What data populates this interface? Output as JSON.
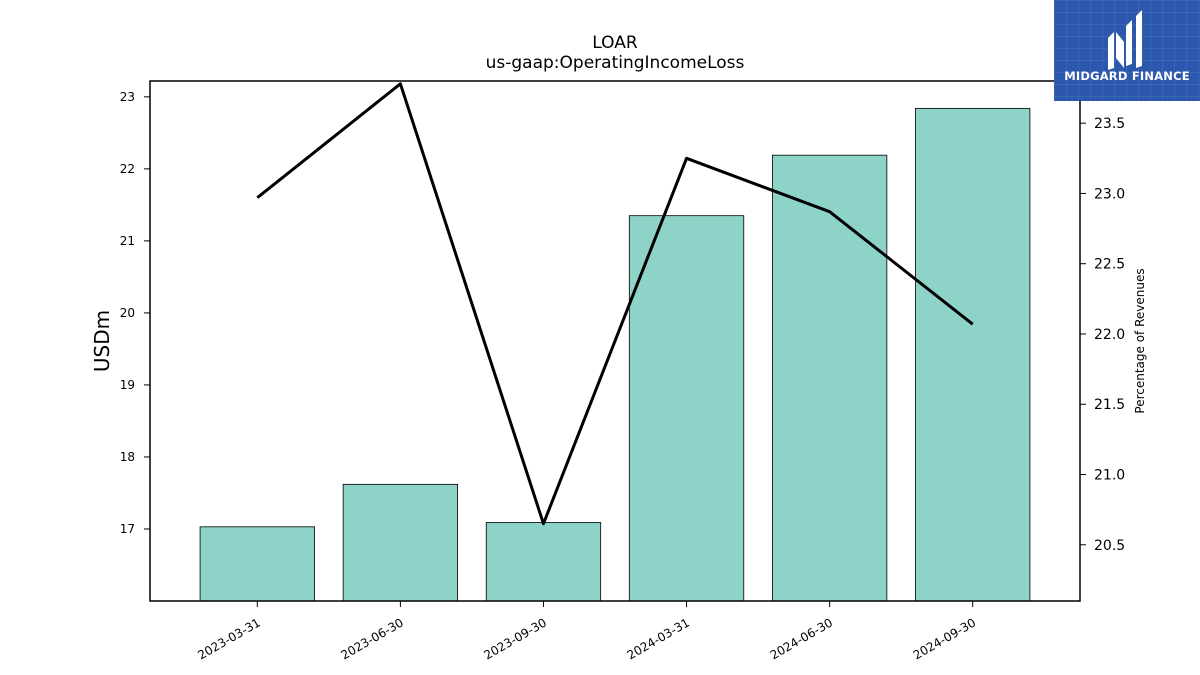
{
  "chart_data": {
    "type": "bar",
    "title": "LOAR",
    "subtitle": "us-gaap:OperatingIncomeLoss",
    "ylabel": "USDm",
    "y2label": "Percentage of Revenues",
    "categories": [
      "2023-03-31",
      "2023-06-30",
      "2023-09-30",
      "2024-03-31",
      "2024-06-30",
      "2024-09-30"
    ],
    "series": [
      {
        "type": "bar",
        "axis": "left",
        "values": [
          17.03,
          17.62,
          17.09,
          21.35,
          22.19,
          22.84
        ]
      },
      {
        "type": "line",
        "axis": "right",
        "values": [
          22.97,
          23.78,
          20.65,
          23.25,
          22.87,
          22.07
        ]
      }
    ],
    "ylim": [
      16.0,
      23.22
    ],
    "yticks": [
      17,
      18,
      19,
      20,
      21,
      22,
      23
    ],
    "y2lim": [
      20.1,
      23.8
    ],
    "y2ticks": [
      "20.5",
      "21.0",
      "21.5",
      "22.0",
      "22.5",
      "23.0",
      "23.5"
    ],
    "bar_color": "#8dd3c7",
    "line_color": "#000000",
    "grid": false
  },
  "logo": {
    "text": "MIDGARD FINANCE",
    "icon": "midgard-logo-icon",
    "background": "#2b57ad"
  }
}
